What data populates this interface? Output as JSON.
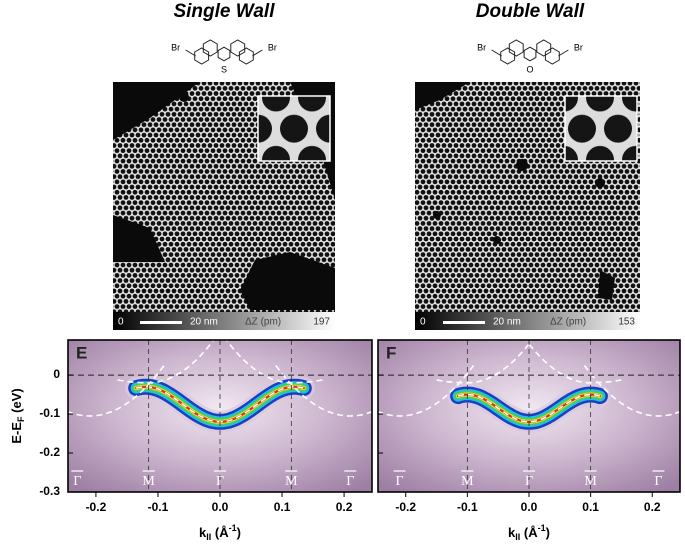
{
  "figure": {
    "stm": [
      {
        "title": "Single Wall",
        "molecule": {
          "left": "Br",
          "right": "Br",
          "heteroatom": "S"
        },
        "scale": {
          "min": "0",
          "bar": "20 nm",
          "quantity": "ΔZ (pm)",
          "max": "197"
        }
      },
      {
        "title": "Double Wall",
        "molecule": {
          "left": "Br",
          "right": "Br",
          "heteroatom": "O"
        },
        "scale": {
          "min": "0",
          "bar": "20 nm",
          "quantity": "ΔZ (pm)",
          "max": "153"
        }
      }
    ],
    "arpes": {
      "ylim": [
        -0.3,
        0.09
      ],
      "yticks": [
        0,
        -0.1,
        -0.2,
        -0.3
      ],
      "xlim": [
        -0.245,
        0.245
      ],
      "xticks": [
        -0.2,
        -0.1,
        {
          "value": 0,
          "label": "0.0"
        },
        0.1,
        0.2
      ],
      "y_label": {
        "main": "E-E",
        "sub": "F",
        "unit": " (eV)"
      },
      "x_label": {
        "main": "k",
        "sub": "II",
        "unit": " (Å",
        "sup": "-1",
        "end": ")"
      },
      "panels": [
        {
          "label": "E",
          "points": [
            "Γ",
            "M",
            "Γ",
            "M",
            "Γ"
          ]
        },
        {
          "label": "F",
          "points": [
            "Γ",
            "M",
            "Γ",
            "M",
            "Γ"
          ]
        }
      ]
    }
  }
}
